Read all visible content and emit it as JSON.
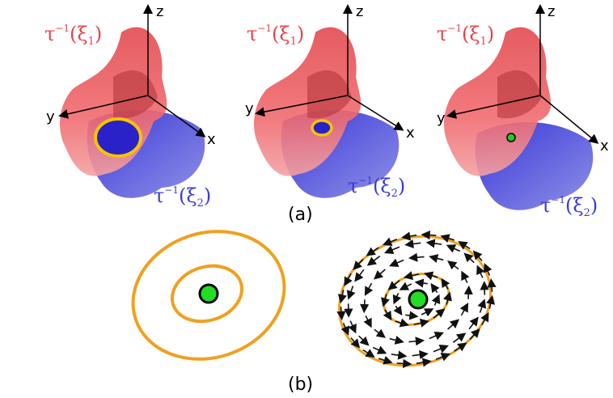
{
  "panel_a": {
    "caption": "(a)",
    "axes": {
      "z": "z",
      "y": "y",
      "x": "x"
    },
    "surface_1": {
      "label_base": "τ",
      "label_sup": "−1",
      "label_arg": "(ξ",
      "label_sub": "1",
      "label_close": ")",
      "color": "#e8434b"
    },
    "surface_2": {
      "label_base": "τ",
      "label_sup": "−1",
      "label_arg": "(ξ",
      "label_sub": "2",
      "label_close": ")",
      "color": "#3a3ad8"
    },
    "intersection_ring_color": "#f5c400",
    "intersection_point_color": "#22cc22"
  },
  "panel_b": {
    "caption": "(b)",
    "contour_color": "#f0a020",
    "center_color": "#22dd22"
  }
}
